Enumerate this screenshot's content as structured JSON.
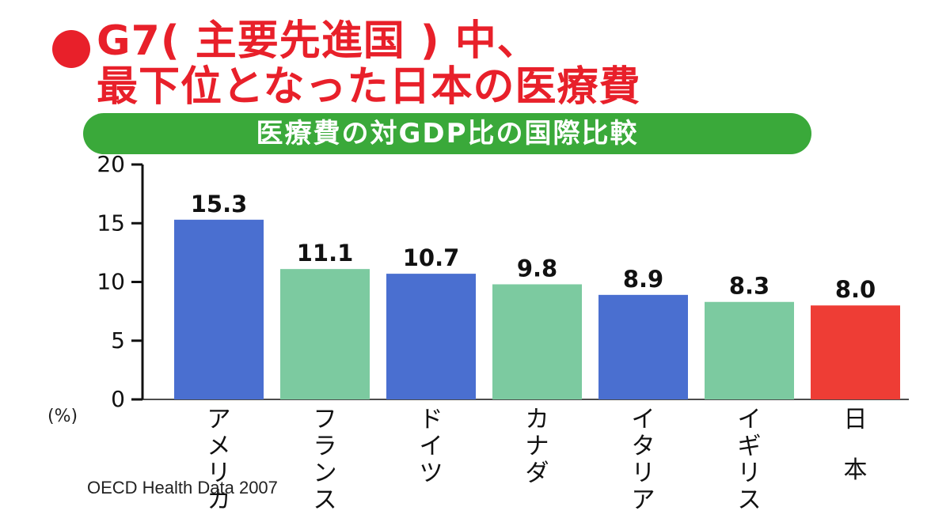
{
  "headline": {
    "line1": "G7( 主要先進国 ) 中、",
    "line2": "最下位となった日本の医療費",
    "bullet_color": "#e8202a"
  },
  "subtitle": "医療費の対GDP比の国際比較",
  "source": "OECD Health Data 2007",
  "chart_data": {
    "type": "bar",
    "title": "医療費の対GDP比の国際比較",
    "ylabel": "(%)",
    "ylim": [
      0,
      20
    ],
    "yticks": [
      0,
      5,
      10,
      15,
      20
    ],
    "grid": false,
    "categories": [
      "アメリカ",
      "フランス",
      "ドイツ",
      "カナダ",
      "イタリア",
      "イギリス",
      "日本"
    ],
    "values": [
      15.3,
      11.1,
      10.7,
      9.8,
      8.9,
      8.3,
      8.0
    ],
    "value_labels": [
      "15.3",
      "11.1",
      "10.7",
      "9.8",
      "8.9",
      "8.3",
      "8.0"
    ],
    "bar_colors": [
      "#4a6fd0",
      "#7ccaa0",
      "#4a6fd0",
      "#7ccaa0",
      "#4a6fd0",
      "#7ccaa0",
      "#ee3d35"
    ]
  }
}
